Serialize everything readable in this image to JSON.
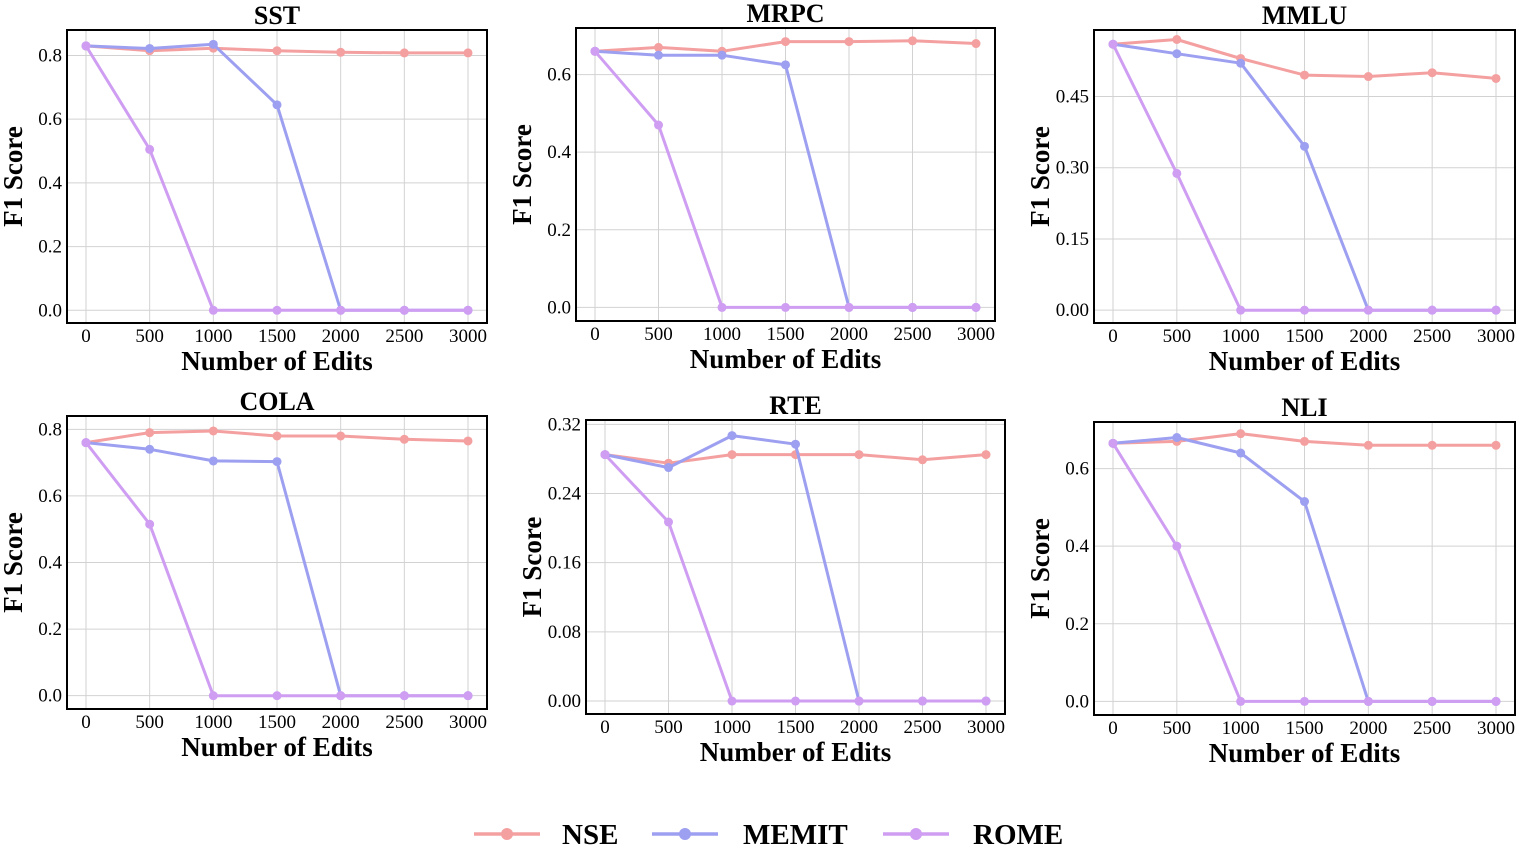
{
  "chart_data": [
    {
      "type": "line",
      "title": "SST",
      "xlabel": "Number of Edits",
      "ylabel": "F1 Score",
      "x": [
        0,
        500,
        1000,
        1500,
        2000,
        2500,
        3000
      ],
      "xticks": [
        "0",
        "500",
        "1000",
        "1500",
        "2000",
        "2500",
        "3000"
      ],
      "yticks": [
        "0.0",
        "0.2",
        "0.4",
        "0.6",
        "0.8"
      ],
      "ylim": [
        -0.04,
        0.88
      ],
      "grid": true,
      "series": [
        {
          "name": "NSE",
          "values": [
            0.83,
            0.815,
            0.823,
            0.815,
            0.81,
            0.808,
            0.808
          ]
        },
        {
          "name": "MEMIT",
          "values": [
            0.83,
            0.822,
            0.835,
            0.645,
            0.0,
            0.0,
            0.0
          ]
        },
        {
          "name": "ROME",
          "values": [
            0.83,
            0.505,
            0.0,
            0.0,
            0.0,
            0.0,
            0.0
          ]
        }
      ]
    },
    {
      "type": "line",
      "title": "MRPC",
      "xlabel": "Number of Edits",
      "ylabel": "F1 Score",
      "x": [
        0,
        500,
        1000,
        1500,
        2000,
        2500,
        3000
      ],
      "xticks": [
        "0",
        "500",
        "1000",
        "1500",
        "2000",
        "2500",
        "3000"
      ],
      "yticks": [
        "0.0",
        "0.2",
        "0.4",
        "0.6"
      ],
      "ylim": [
        -0.035,
        0.72
      ],
      "grid": true,
      "series": [
        {
          "name": "NSE",
          "values": [
            0.66,
            0.67,
            0.66,
            0.685,
            0.685,
            0.687,
            0.68
          ]
        },
        {
          "name": "MEMIT",
          "values": [
            0.66,
            0.65,
            0.65,
            0.625,
            0.0,
            0.0,
            0.0
          ]
        },
        {
          "name": "ROME",
          "values": [
            0.66,
            0.47,
            0.0,
            0.0,
            0.0,
            0.0,
            0.0
          ]
        }
      ]
    },
    {
      "type": "line",
      "title": "MMLU",
      "xlabel": "Number of Edits",
      "ylabel": "F1 Score",
      "x": [
        0,
        500,
        1000,
        1500,
        2000,
        2500,
        3000
      ],
      "xticks": [
        "0",
        "500",
        "1000",
        "1500",
        "2000",
        "2500",
        "3000"
      ],
      "yticks": [
        "0.00",
        "0.15",
        "0.30",
        "0.45"
      ],
      "ylim": [
        -0.027,
        0.59
      ],
      "grid": true,
      "series": [
        {
          "name": "NSE",
          "values": [
            0.56,
            0.57,
            0.53,
            0.495,
            0.492,
            0.5,
            0.488
          ]
        },
        {
          "name": "MEMIT",
          "values": [
            0.56,
            0.54,
            0.52,
            0.345,
            0.0,
            0.0,
            0.0
          ]
        },
        {
          "name": "ROME",
          "values": [
            0.56,
            0.288,
            0.0,
            0.0,
            0.0,
            0.0,
            0.0
          ]
        }
      ]
    },
    {
      "type": "line",
      "title": "COLA",
      "xlabel": "Number of Edits",
      "ylabel": "F1 Score",
      "x": [
        0,
        500,
        1000,
        1500,
        2000,
        2500,
        3000
      ],
      "xticks": [
        "0",
        "500",
        "1000",
        "1500",
        "2000",
        "2500",
        "3000"
      ],
      "yticks": [
        "0.0",
        "0.2",
        "0.4",
        "0.6",
        "0.8"
      ],
      "ylim": [
        -0.04,
        0.84
      ],
      "grid": true,
      "series": [
        {
          "name": "NSE",
          "values": [
            0.76,
            0.79,
            0.795,
            0.78,
            0.78,
            0.77,
            0.765
          ]
        },
        {
          "name": "MEMIT",
          "values": [
            0.76,
            0.74,
            0.705,
            0.703,
            0.0,
            0.0,
            0.0
          ]
        },
        {
          "name": "ROME",
          "values": [
            0.76,
            0.515,
            0.0,
            0.0,
            0.0,
            0.0,
            0.0
          ]
        }
      ]
    },
    {
      "type": "line",
      "title": "RTE",
      "xlabel": "Number of Edits",
      "ylabel": "F1 Score",
      "x": [
        0,
        500,
        1000,
        1500,
        2000,
        2500,
        3000
      ],
      "xticks": [
        "0",
        "500",
        "1000",
        "1500",
        "2000",
        "2500",
        "3000"
      ],
      "yticks": [
        "0.00",
        "0.08",
        "0.16",
        "0.24",
        "0.32"
      ],
      "ylim": [
        -0.015,
        0.325
      ],
      "grid": true,
      "series": [
        {
          "name": "NSE",
          "values": [
            0.285,
            0.275,
            0.285,
            0.285,
            0.285,
            0.279,
            0.285
          ]
        },
        {
          "name": "MEMIT",
          "values": [
            0.285,
            0.27,
            0.307,
            0.297,
            0.0,
            0.0,
            0.0
          ]
        },
        {
          "name": "ROME",
          "values": [
            0.285,
            0.207,
            0.0,
            0.0,
            0.0,
            0.0,
            0.0
          ]
        }
      ]
    },
    {
      "type": "line",
      "title": "NLI",
      "xlabel": "Number of Edits",
      "ylabel": "F1 Score",
      "x": [
        0,
        500,
        1000,
        1500,
        2000,
        2500,
        3000
      ],
      "xticks": [
        "0",
        "500",
        "1000",
        "1500",
        "2000",
        "2500",
        "3000"
      ],
      "yticks": [
        "0.0",
        "0.2",
        "0.4",
        "0.6"
      ],
      "ylim": [
        -0.035,
        0.72
      ],
      "grid": true,
      "series": [
        {
          "name": "NSE",
          "values": [
            0.665,
            0.67,
            0.69,
            0.67,
            0.66,
            0.66,
            0.66
          ]
        },
        {
          "name": "MEMIT",
          "values": [
            0.665,
            0.68,
            0.64,
            0.515,
            0.0,
            0.0,
            0.0
          ]
        },
        {
          "name": "ROME",
          "values": [
            0.665,
            0.4,
            0.0,
            0.0,
            0.0,
            0.0,
            0.0
          ]
        }
      ]
    }
  ],
  "legend": {
    "position": "bottom-center",
    "entries": [
      {
        "name": "NSE",
        "color": "#f4a0a0"
      },
      {
        "name": "MEMIT",
        "color": "#9d9ff0"
      },
      {
        "name": "ROME",
        "color": "#cf9ef2"
      }
    ]
  },
  "colors": {
    "NSE": "#f4a0a0",
    "MEMIT": "#9d9ff0",
    "ROME": "#cf9ef2",
    "grid": "#d2d2d2",
    "frame": "#000000"
  }
}
